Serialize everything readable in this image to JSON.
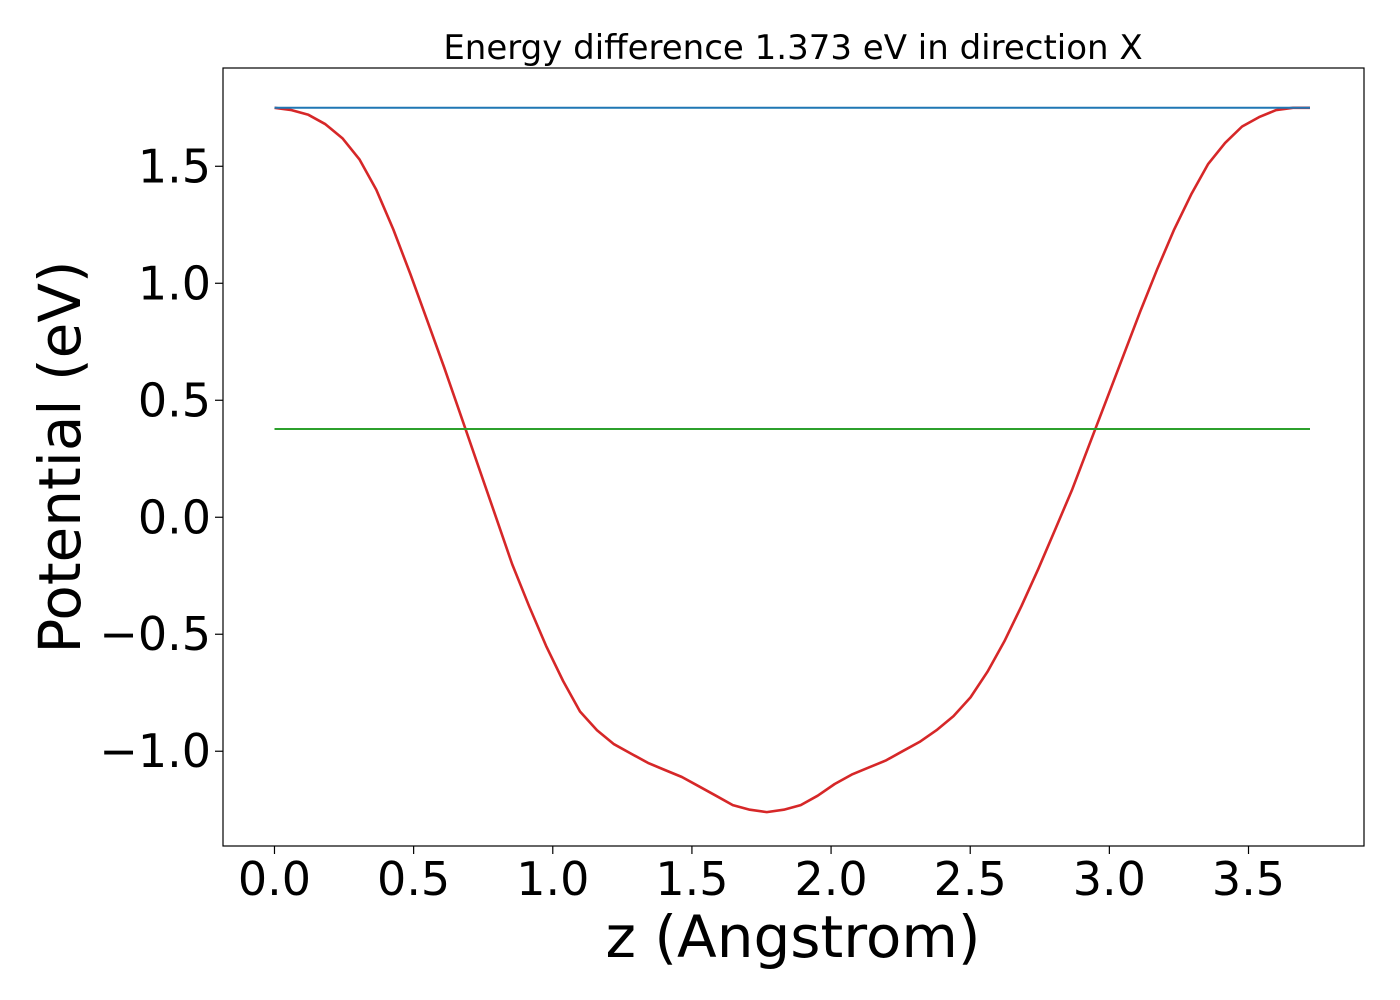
{
  "chart_data": {
    "type": "line",
    "title": "Energy difference 1.373 eV in direction X",
    "xlabel": "z (Angstrom)",
    "ylabel": "Potential (eV)",
    "xlim": [
      -0.185,
      3.915
    ],
    "ylim": [
      -1.405,
      1.92
    ],
    "xticks": [
      0.0,
      0.5,
      1.0,
      1.5,
      2.0,
      2.5,
      3.0,
      3.5
    ],
    "xtick_labels": [
      "0.0",
      "0.5",
      "1.0",
      "1.5",
      "2.0",
      "2.5",
      "3.0",
      "3.5"
    ],
    "yticks": [
      -1.0,
      -0.5,
      0.0,
      0.5,
      1.0,
      1.5
    ],
    "ytick_labels": [
      "−1.0",
      "−0.5",
      "0.0",
      "0.5",
      "1.0",
      "1.5"
    ],
    "grid": false,
    "series": [
      {
        "color": "#d62728",
        "x": [
          0.0,
          0.061,
          0.122,
          0.183,
          0.244,
          0.305,
          0.366,
          0.427,
          0.488,
          0.549,
          0.61,
          0.671,
          0.732,
          0.793,
          0.854,
          0.915,
          0.976,
          1.037,
          1.098,
          1.159,
          1.22,
          1.281,
          1.342,
          1.403,
          1.464,
          1.525,
          1.586,
          1.647,
          1.708,
          1.769,
          1.83,
          1.891,
          1.952,
          2.013,
          2.074,
          2.135,
          2.196,
          2.257,
          2.318,
          2.379,
          2.44,
          2.501,
          2.562,
          2.623,
          2.684,
          2.745,
          2.806,
          2.867,
          2.928,
          2.989,
          3.05,
          3.111,
          3.172,
          3.233,
          3.294,
          3.355,
          3.416,
          3.477,
          3.538,
          3.599,
          3.66,
          3.721
        ],
        "y": [
          1.75,
          1.74,
          1.72,
          1.68,
          1.62,
          1.53,
          1.4,
          1.23,
          1.04,
          0.84,
          0.64,
          0.43,
          0.22,
          0.01,
          -0.2,
          -0.38,
          -0.55,
          -0.7,
          -0.83,
          -0.91,
          -0.97,
          -1.01,
          -1.05,
          -1.08,
          -1.11,
          -1.15,
          -1.19,
          -1.23,
          -1.25,
          -1.26,
          -1.25,
          -1.23,
          -1.19,
          -1.14,
          -1.1,
          -1.07,
          -1.04,
          -1.0,
          -0.96,
          -0.91,
          -0.85,
          -0.77,
          -0.66,
          -0.53,
          -0.38,
          -0.22,
          -0.05,
          0.12,
          0.31,
          0.5,
          0.69,
          0.88,
          1.06,
          1.23,
          1.38,
          1.51,
          1.6,
          1.67,
          1.71,
          1.74,
          1.75,
          1.75
        ]
      },
      {
        "color": "#1f77b4",
        "x": [
          0.0,
          3.721
        ],
        "y": [
          1.75,
          1.75
        ]
      },
      {
        "color": "#2ca02c",
        "x": [
          0.0,
          3.721
        ],
        "y": [
          0.377,
          0.377
        ]
      }
    ]
  }
}
